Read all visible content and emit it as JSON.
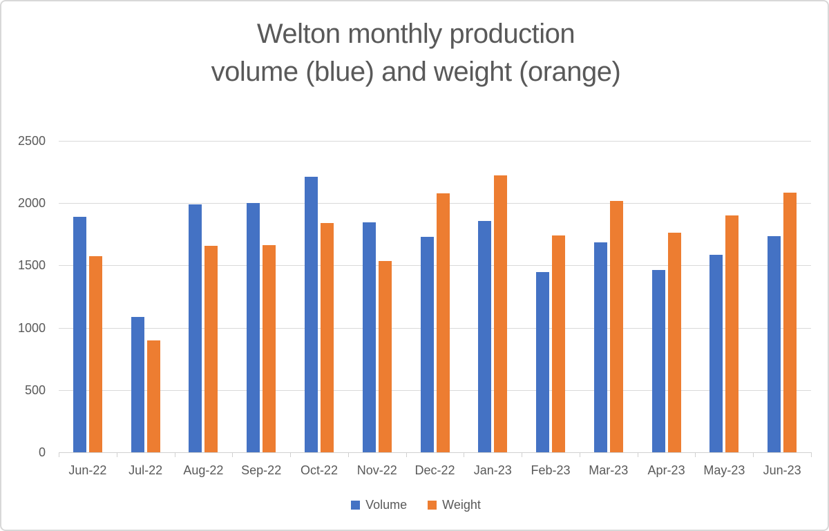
{
  "title": {
    "line1": "Welton monthly production",
    "line2": "volume (blue) and weight (orange)"
  },
  "colors": {
    "volume_blue": "#4472C4",
    "weight_orange": "#ED7D31",
    "gridline": "#D9D9D9",
    "axis": "#D0D0D0",
    "text": "#595959",
    "frame_border": "#D8D8D8"
  },
  "chart_data": {
    "type": "bar",
    "title": "Welton monthly production volume (blue) and weight (orange)",
    "categories": [
      "Jun-22",
      "Jul-22",
      "Aug-22",
      "Sep-22",
      "Oct-22",
      "Nov-22",
      "Dec-22",
      "Jan-23",
      "Feb-23",
      "Mar-23",
      "Apr-23",
      "May-23",
      "Jun-23"
    ],
    "series": [
      {
        "name": "Volume",
        "color": "#4472C4",
        "values": [
          1890,
          1085,
          1990,
          2000,
          2210,
          1845,
          1730,
          1855,
          1445,
          1685,
          1465,
          1585,
          1735
        ]
      },
      {
        "name": "Weight",
        "color": "#ED7D31",
        "values": [
          1575,
          900,
          1660,
          1665,
          1840,
          1535,
          2080,
          2225,
          1740,
          2020,
          1760,
          1900,
          2085
        ]
      }
    ],
    "xlabel": "",
    "ylabel": "",
    "ylim": [
      0,
      2500
    ],
    "ytick_interval": 500,
    "grid": true,
    "legend_position": "bottom"
  }
}
